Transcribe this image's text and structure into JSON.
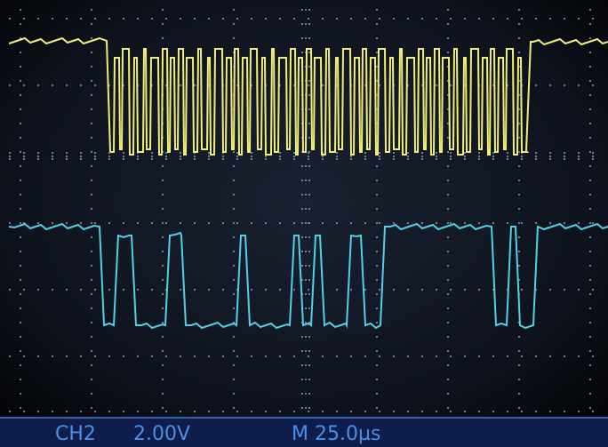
{
  "status_bar": {
    "channel": "CH2",
    "volts_per_div": "2.00V",
    "timebase": "M 25.0µs"
  }
}
